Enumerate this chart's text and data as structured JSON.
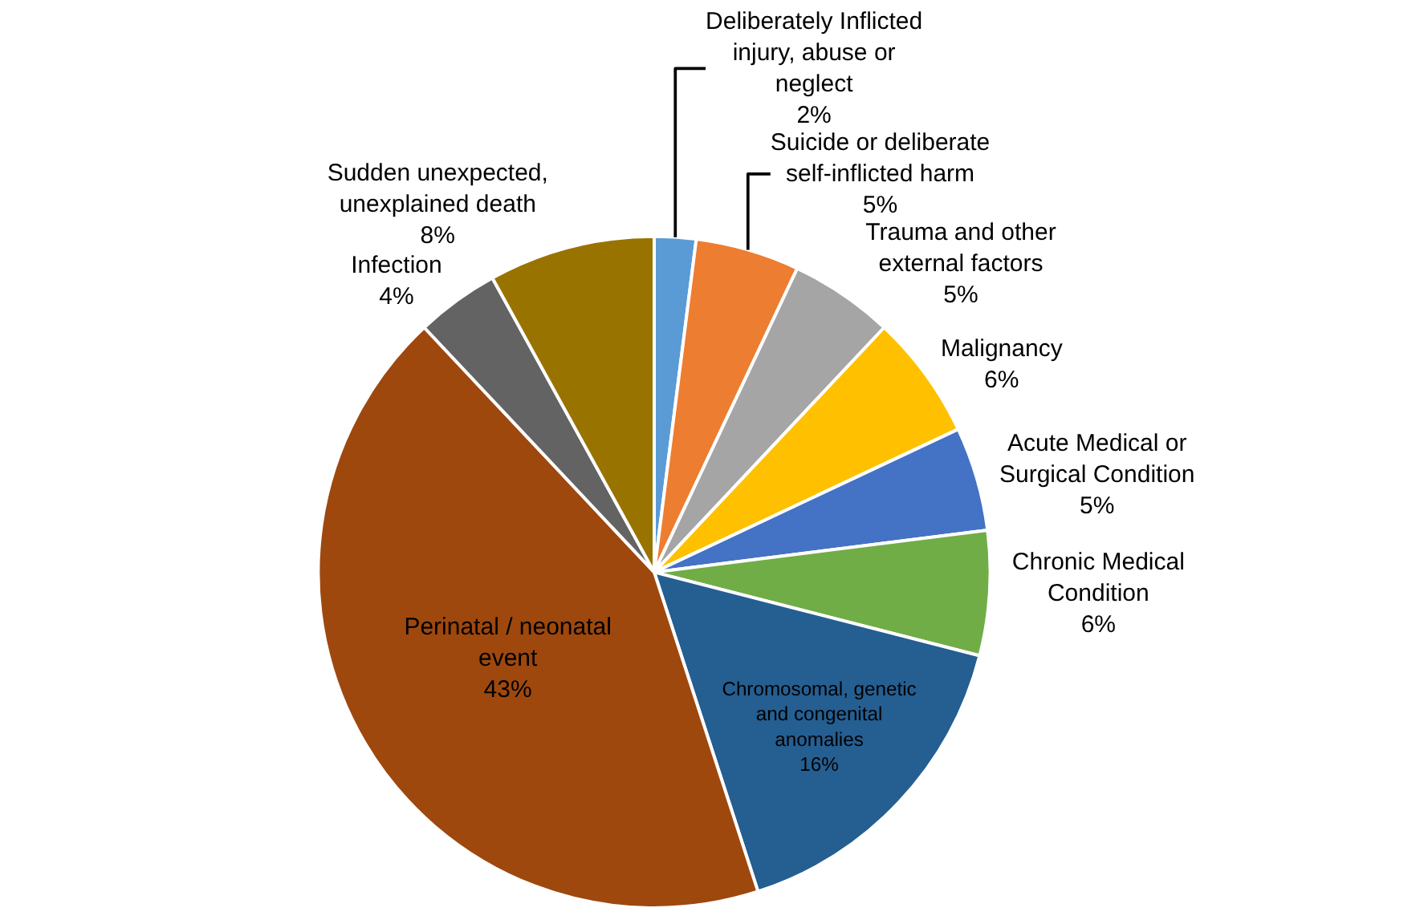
{
  "chart_data": {
    "type": "pie",
    "categories": [
      "Deliberately Inflicted injury, abuse or neglect",
      "Suicide or deliberate self-inflicted harm",
      "Trauma and other external factors",
      "Malignancy",
      "Acute Medical or Surgical Condition",
      "Chronic Medical Condition",
      "Chromosomal, genetic and congenital anomalies",
      "Perinatal / neonatal event",
      "Infection",
      "Sudden unexpected, unexplained death"
    ],
    "values": [
      2,
      5,
      5,
      6,
      5,
      6,
      16,
      43,
      4,
      8
    ],
    "value_labels": [
      "2%",
      "5%",
      "5%",
      "6%",
      "5%",
      "6%",
      "16%",
      "43%",
      "4%",
      "8%"
    ],
    "colors": [
      "#5b9bd5",
      "#ed7d31",
      "#a5a5a5",
      "#ffc000",
      "#4472c4",
      "#70ad47",
      "#255e91",
      "#9e480e",
      "#636363",
      "#997300"
    ],
    "legend": false
  }
}
